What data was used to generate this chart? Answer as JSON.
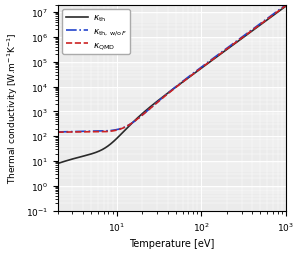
{
  "xlabel": "Temperature [eV]",
  "ylabel": "Thermal conductivity [W.m$^{-1}$K$^{-1}$]",
  "xlim": [
    2,
    1000
  ],
  "ylim": [
    0.1,
    20000000.0
  ],
  "legend": [
    {
      "label": "$\\kappa_{\\mathrm{th}}$",
      "color": "#2a2a2a",
      "linestyle": "-",
      "linewidth": 1.2
    },
    {
      "label": "$\\kappa_{\\mathrm{th,\\,w/o\\,}F}$",
      "color": "#2244cc",
      "linestyle": "-.",
      "linewidth": 1.2
    },
    {
      "label": "$\\kappa_{\\mathrm{QMD}}$",
      "color": "#cc2222",
      "linestyle": "--",
      "linewidth": 1.2
    }
  ],
  "bg_color": "#ebebeb",
  "grid_color": "#ffffff",
  "fig_bg": "#ffffff"
}
